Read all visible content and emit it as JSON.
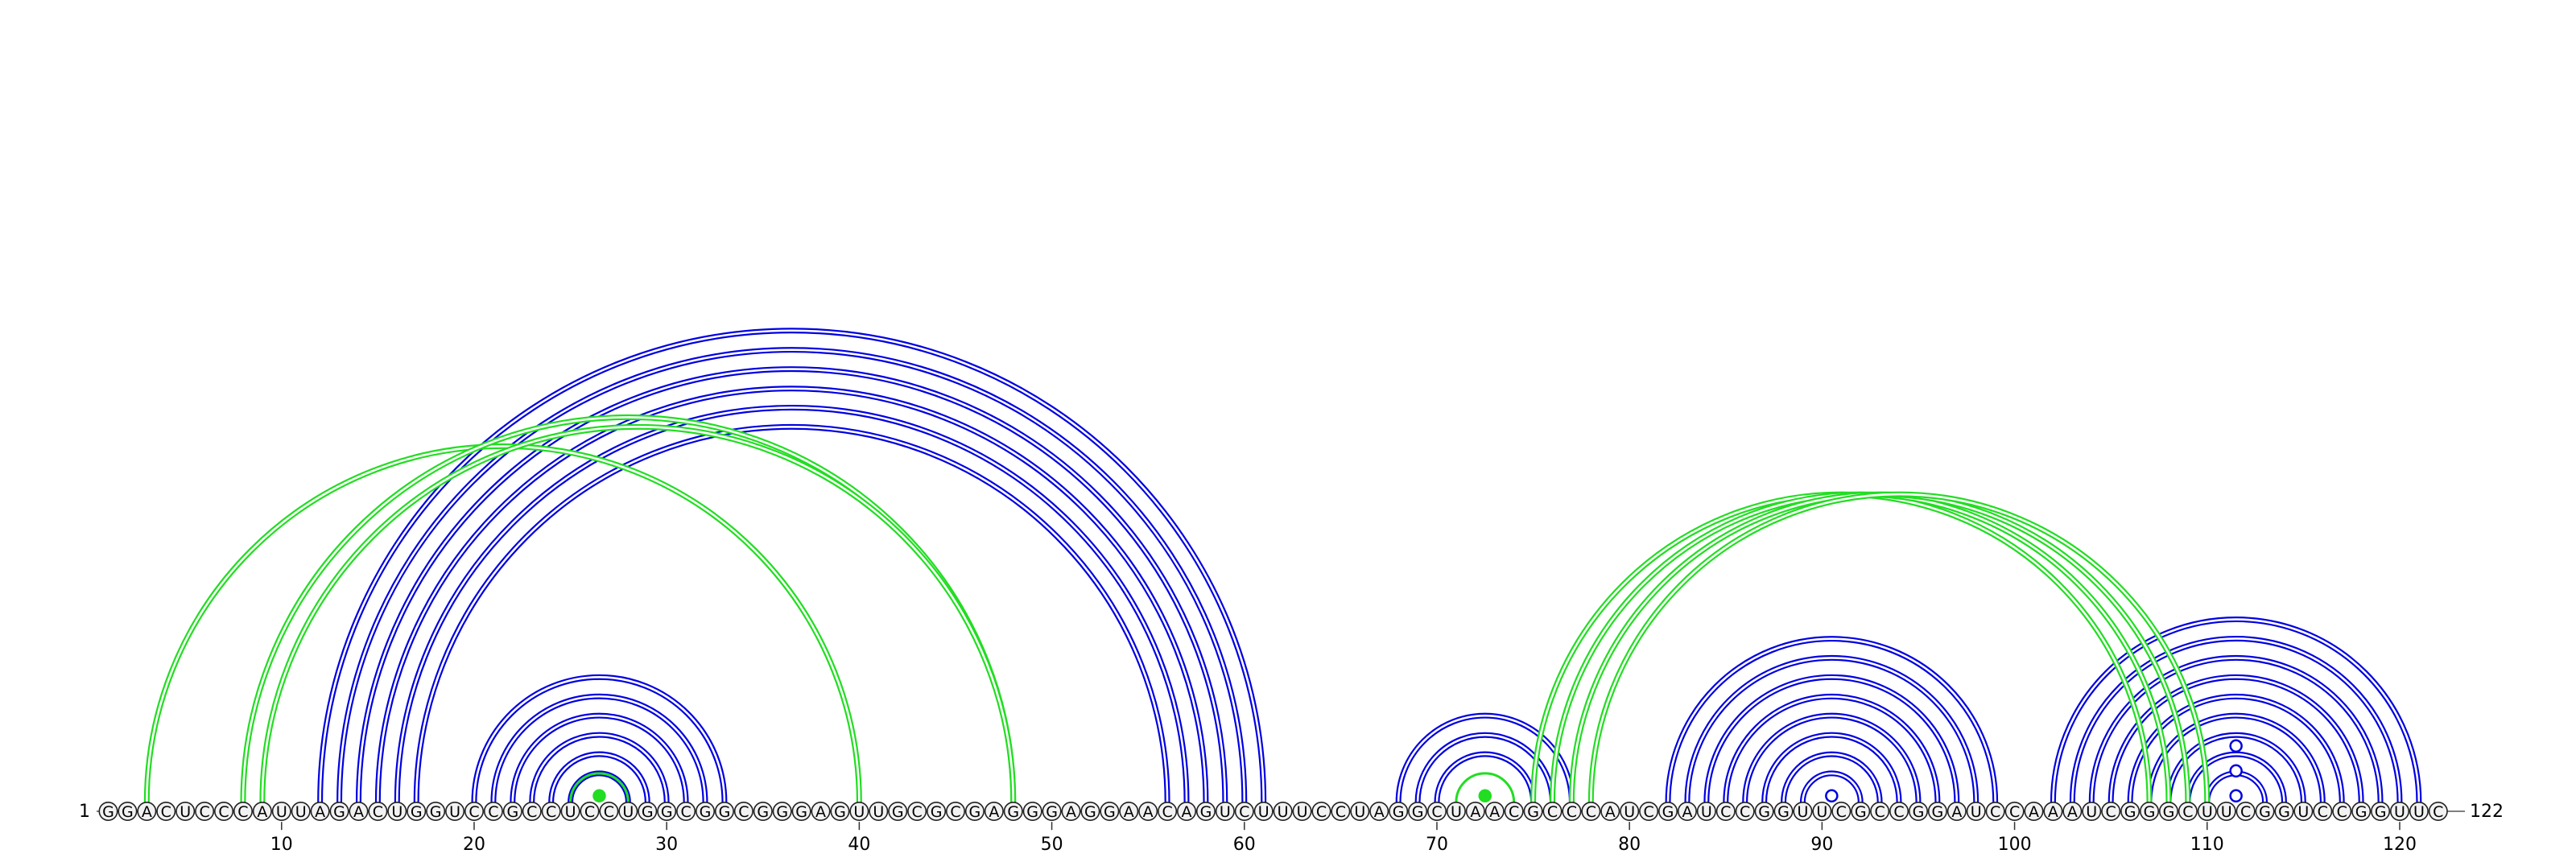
{
  "sequence": "GGACUCCCAUUAGACUGGUCCGCCUCCUGGCGGCGGGAGUUGCGCGAGGGAGGAACAGUCUUUCCUAGGCUAACGCCCAUCGAUCCGGUUCGCCGGAUCCAAAUCGGGCUUCGGUCCGGUUC",
  "start_label": "1",
  "end_label": "122",
  "tick_labels": [
    "10",
    "20",
    "30",
    "40",
    "50",
    "60",
    "70",
    "80",
    "90",
    "100",
    "110",
    "120"
  ],
  "tick_positions": [
    10,
    20,
    30,
    40,
    50,
    60,
    70,
    80,
    90,
    100,
    110,
    120
  ],
  "colors": {
    "canonical": "#0000e0",
    "noncanonical": "#22dd22",
    "nucleotide_fill": "#f2f2f2",
    "nucleotide_stroke": "#222222"
  },
  "canonical_pairs": [
    [
      12,
      61
    ],
    [
      13,
      60
    ],
    [
      14,
      59
    ],
    [
      15,
      58
    ],
    [
      16,
      57
    ],
    [
      17,
      56
    ],
    [
      20,
      33
    ],
    [
      21,
      32
    ],
    [
      22,
      31
    ],
    [
      23,
      30
    ],
    [
      24,
      29
    ],
    [
      25,
      28
    ],
    [
      68,
      77
    ],
    [
      69,
      76
    ],
    [
      70,
      75
    ],
    [
      82,
      99
    ],
    [
      83,
      98
    ],
    [
      84,
      97
    ],
    [
      85,
      96
    ],
    [
      86,
      95
    ],
    [
      87,
      94
    ],
    [
      88,
      93
    ],
    [
      89,
      92
    ],
    [
      102,
      121
    ],
    [
      103,
      120
    ],
    [
      104,
      119
    ],
    [
      105,
      118
    ],
    [
      106,
      117
    ],
    [
      107,
      116
    ],
    [
      108,
      115
    ],
    [
      109,
      114
    ],
    [
      110,
      113
    ]
  ],
  "noncanonical_pairs": [
    [
      3,
      40
    ],
    [
      8,
      48
    ],
    [
      9,
      48
    ],
    [
      25,
      28
    ],
    [
      71,
      74
    ],
    [
      75,
      107
    ],
    [
      76,
      108
    ],
    [
      77,
      109
    ],
    [
      78,
      110
    ]
  ],
  "hairpin_markers": [
    {
      "pos": 26.5,
      "level": 1,
      "filled": true,
      "color": "noncanonical"
    },
    {
      "pos": 72.5,
      "level": 1,
      "filled": true,
      "color": "noncanonical"
    },
    {
      "pos": 90.5,
      "level": 1,
      "filled": false,
      "color": "canonical"
    },
    {
      "pos": 111.5,
      "level": 1,
      "filled": false,
      "color": "canonical"
    },
    {
      "pos": 111.5,
      "level": 2,
      "filled": false,
      "color": "canonical"
    },
    {
      "pos": 111.5,
      "level": 3,
      "filled": false,
      "color": "canonical"
    }
  ]
}
